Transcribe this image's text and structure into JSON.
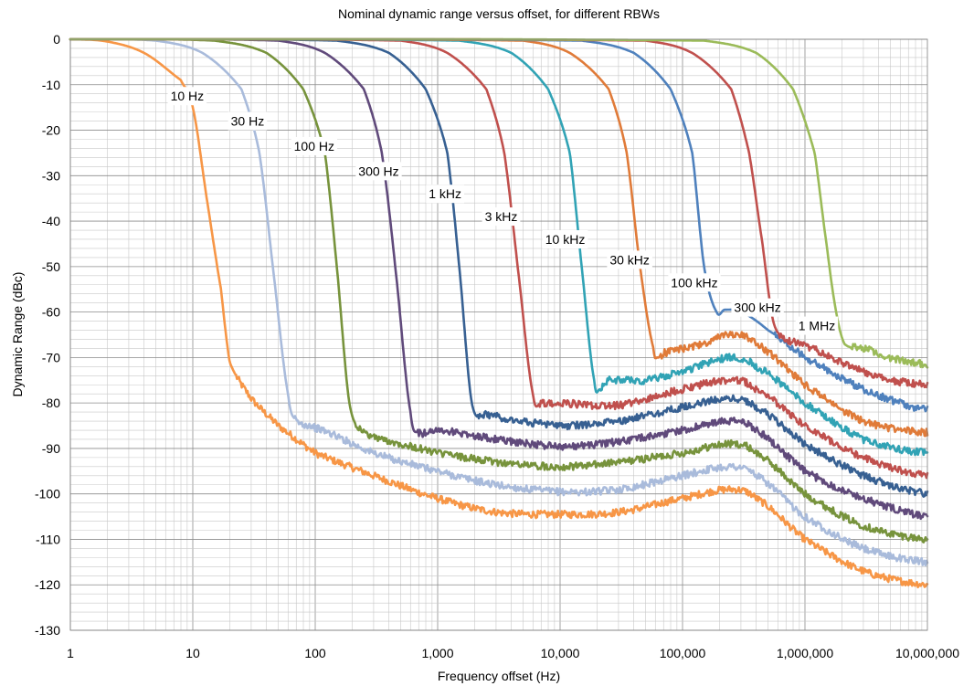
{
  "chart_data": {
    "type": "line",
    "title": "Nominal dynamic range versus offset, for different RBWs",
    "xlabel": "Frequency offset (Hz)",
    "ylabel": "Dynamic Range (dBc)",
    "xscale": "log",
    "xlim": [
      1,
      10000000
    ],
    "ylim": [
      -130,
      0
    ],
    "grid": true,
    "x_tick_labels": [
      "1",
      "10",
      "100",
      "1,000",
      "10,000",
      "100,000",
      "1,000,000",
      "10,000,000"
    ],
    "y_tick_labels": [
      "0",
      "-10",
      "-20",
      "-30",
      "-40",
      "-50",
      "-60",
      "-70",
      "-80",
      "-90",
      "-100",
      "-110",
      "-120",
      "-130"
    ],
    "series": [
      {
        "name": "10 Hz",
        "color": "#f79646",
        "points": [
          [
            1,
            0
          ],
          [
            2,
            -0.5
          ],
          [
            4,
            -3
          ],
          [
            8,
            -9
          ],
          [
            10,
            -15
          ],
          [
            13,
            -35
          ],
          [
            17,
            -55
          ],
          [
            20,
            -71
          ],
          [
            30,
            -79
          ],
          [
            50,
            -85
          ],
          [
            100,
            -91
          ],
          [
            300,
            -96
          ],
          [
            1000,
            -101
          ],
          [
            3000,
            -104
          ],
          [
            10000,
            -104.5
          ],
          [
            30000,
            -104
          ],
          [
            100000,
            -101
          ],
          [
            250000,
            -99
          ],
          [
            400000,
            -101
          ],
          [
            1000000,
            -110
          ],
          [
            3000000,
            -117
          ],
          [
            10000000,
            -120
          ]
        ]
      },
      {
        "name": "30 Hz",
        "color": "#a9bbdb",
        "points": [
          [
            1,
            0
          ],
          [
            5,
            -0.3
          ],
          [
            12,
            -3
          ],
          [
            25,
            -11
          ],
          [
            35,
            -25
          ],
          [
            45,
            -50
          ],
          [
            60,
            -78
          ],
          [
            70,
            -84
          ],
          [
            100,
            -85.5
          ],
          [
            300,
            -91
          ],
          [
            1000,
            -95
          ],
          [
            3000,
            -98
          ],
          [
            10000,
            -99.5
          ],
          [
            30000,
            -99
          ],
          [
            100000,
            -96
          ],
          [
            250000,
            -94
          ],
          [
            400000,
            -96
          ],
          [
            1000000,
            -105
          ],
          [
            3000000,
            -112
          ],
          [
            10000000,
            -115
          ]
        ]
      },
      {
        "name": "100 Hz",
        "color": "#77933c",
        "points": [
          [
            1,
            0
          ],
          [
            15,
            -0.3
          ],
          [
            40,
            -3
          ],
          [
            80,
            -11
          ],
          [
            120,
            -25
          ],
          [
            150,
            -50
          ],
          [
            190,
            -80
          ],
          [
            250,
            -86.5
          ],
          [
            500,
            -89
          ],
          [
            1000,
            -91
          ],
          [
            3000,
            -93
          ],
          [
            10000,
            -94
          ],
          [
            30000,
            -93
          ],
          [
            100000,
            -91
          ],
          [
            250000,
            -89
          ],
          [
            400000,
            -91
          ],
          [
            1000000,
            -100
          ],
          [
            3000000,
            -107
          ],
          [
            10000000,
            -110
          ]
        ]
      },
      {
        "name": "300 Hz",
        "color": "#604a7b",
        "points": [
          [
            1,
            0
          ],
          [
            50,
            -0.3
          ],
          [
            120,
            -3
          ],
          [
            250,
            -11
          ],
          [
            350,
            -25
          ],
          [
            450,
            -50
          ],
          [
            600,
            -82
          ],
          [
            700,
            -86.5
          ],
          [
            1000,
            -86
          ],
          [
            3000,
            -88
          ],
          [
            10000,
            -89.5
          ],
          [
            30000,
            -88.5
          ],
          [
            100000,
            -86
          ],
          [
            250000,
            -84
          ],
          [
            400000,
            -86
          ],
          [
            1000000,
            -95
          ],
          [
            3000000,
            -101
          ],
          [
            10000000,
            -105
          ]
        ]
      },
      {
        "name": "1 kHz",
        "color": "#376092",
        "points": [
          [
            1,
            0
          ],
          [
            150,
            -0.3
          ],
          [
            400,
            -3
          ],
          [
            800,
            -11
          ],
          [
            1200,
            -25
          ],
          [
            1500,
            -50
          ],
          [
            1900,
            -80
          ],
          [
            2500,
            -82.5
          ],
          [
            5000,
            -84
          ],
          [
            10000,
            -85
          ],
          [
            30000,
            -84
          ],
          [
            100000,
            -81
          ],
          [
            250000,
            -79
          ],
          [
            400000,
            -81
          ],
          [
            1000000,
            -89
          ],
          [
            3000000,
            -96
          ],
          [
            10000000,
            -100
          ]
        ]
      },
      {
        "name": "3 kHz",
        "color": "#c0504d",
        "points": [
          [
            1,
            0
          ],
          [
            500,
            -0.3
          ],
          [
            1200,
            -3
          ],
          [
            2500,
            -11
          ],
          [
            3500,
            -25
          ],
          [
            4500,
            -50
          ],
          [
            6000,
            -78
          ],
          [
            7000,
            -80
          ],
          [
            10000,
            -80
          ],
          [
            30000,
            -80.5
          ],
          [
            100000,
            -77
          ],
          [
            250000,
            -75
          ],
          [
            400000,
            -77
          ],
          [
            1000000,
            -85
          ],
          [
            3000000,
            -92
          ],
          [
            10000000,
            -96
          ]
        ]
      },
      {
        "name": "10 kHz",
        "color": "#31a3b5",
        "points": [
          [
            1,
            0
          ],
          [
            1500,
            -0.3
          ],
          [
            4000,
            -3
          ],
          [
            8000,
            -11
          ],
          [
            12000,
            -25
          ],
          [
            15000,
            -50
          ],
          [
            19000,
            -75
          ],
          [
            21000,
            -77
          ],
          [
            25000,
            -75
          ],
          [
            50000,
            -75
          ],
          [
            100000,
            -73
          ],
          [
            250000,
            -70
          ],
          [
            400000,
            -72
          ],
          [
            1000000,
            -80
          ],
          [
            3000000,
            -88
          ],
          [
            10000000,
            -91
          ]
        ]
      },
      {
        "name": "30 kHz",
        "color": "#e07b39",
        "points": [
          [
            1,
            0
          ],
          [
            5000,
            -0.3
          ],
          [
            12000,
            -3
          ],
          [
            25000,
            -11
          ],
          [
            35000,
            -25
          ],
          [
            45000,
            -50
          ],
          [
            58000,
            -68
          ],
          [
            62000,
            -70
          ],
          [
            70000,
            -69
          ],
          [
            150000,
            -67
          ],
          [
            250000,
            -65
          ],
          [
            400000,
            -67
          ],
          [
            1000000,
            -76
          ],
          [
            3000000,
            -84
          ],
          [
            10000000,
            -86.5
          ]
        ]
      },
      {
        "name": "100 kHz",
        "color": "#4f81bd",
        "points": [
          [
            1,
            0
          ],
          [
            15000,
            -0.3
          ],
          [
            40000,
            -3
          ],
          [
            80000,
            -11
          ],
          [
            120000,
            -25
          ],
          [
            150000,
            -50
          ],
          [
            190000,
            -60
          ],
          [
            220000,
            -59.5
          ],
          [
            300000,
            -60
          ],
          [
            500000,
            -64
          ],
          [
            1000000,
            -70
          ],
          [
            3000000,
            -77
          ],
          [
            10000000,
            -81.5
          ]
        ]
      },
      {
        "name": "300 kHz",
        "color": "#c0504d",
        "points": [
          [
            1,
            0
          ],
          [
            50000,
            -0.3
          ],
          [
            120000,
            -3
          ],
          [
            250000,
            -11
          ],
          [
            350000,
            -25
          ],
          [
            450000,
            -45
          ],
          [
            550000,
            -62
          ],
          [
            700000,
            -66
          ],
          [
            1000000,
            -67.5
          ],
          [
            3000000,
            -73
          ],
          [
            5000000,
            -75
          ],
          [
            10000000,
            -76
          ]
        ]
      },
      {
        "name": "1 MHz",
        "color": "#9bbb59",
        "points": [
          [
            1,
            0
          ],
          [
            150000,
            -0.3
          ],
          [
            400000,
            -3
          ],
          [
            800000,
            -11
          ],
          [
            1200000,
            -25
          ],
          [
            1500000,
            -45
          ],
          [
            1800000,
            -60
          ],
          [
            2100000,
            -67
          ],
          [
            3000000,
            -68
          ],
          [
            5000000,
            -70
          ],
          [
            10000000,
            -71.5
          ]
        ]
      }
    ],
    "curve_labels": [
      {
        "text": "10 Hz",
        "x": 9,
        "y": -12.5
      },
      {
        "text": "30 Hz",
        "x": 28,
        "y": -18
      },
      {
        "text": "100 Hz",
        "x": 98,
        "y": -23.5
      },
      {
        "text": "300 Hz",
        "x": 330,
        "y": -29
      },
      {
        "text": "1 kHz",
        "x": 1150,
        "y": -34
      },
      {
        "text": "3 kHz",
        "x": 3300,
        "y": -39
      },
      {
        "text": "10 kHz",
        "x": 11000,
        "y": -44
      },
      {
        "text": "30 kHz",
        "x": 37000,
        "y": -48.5
      },
      {
        "text": "100 kHz",
        "x": 125000,
        "y": -53.5
      },
      {
        "text": "300 kHz",
        "x": 410000,
        "y": -59
      },
      {
        "text": "1 MHz",
        "x": 1250000,
        "y": -63
      }
    ]
  }
}
